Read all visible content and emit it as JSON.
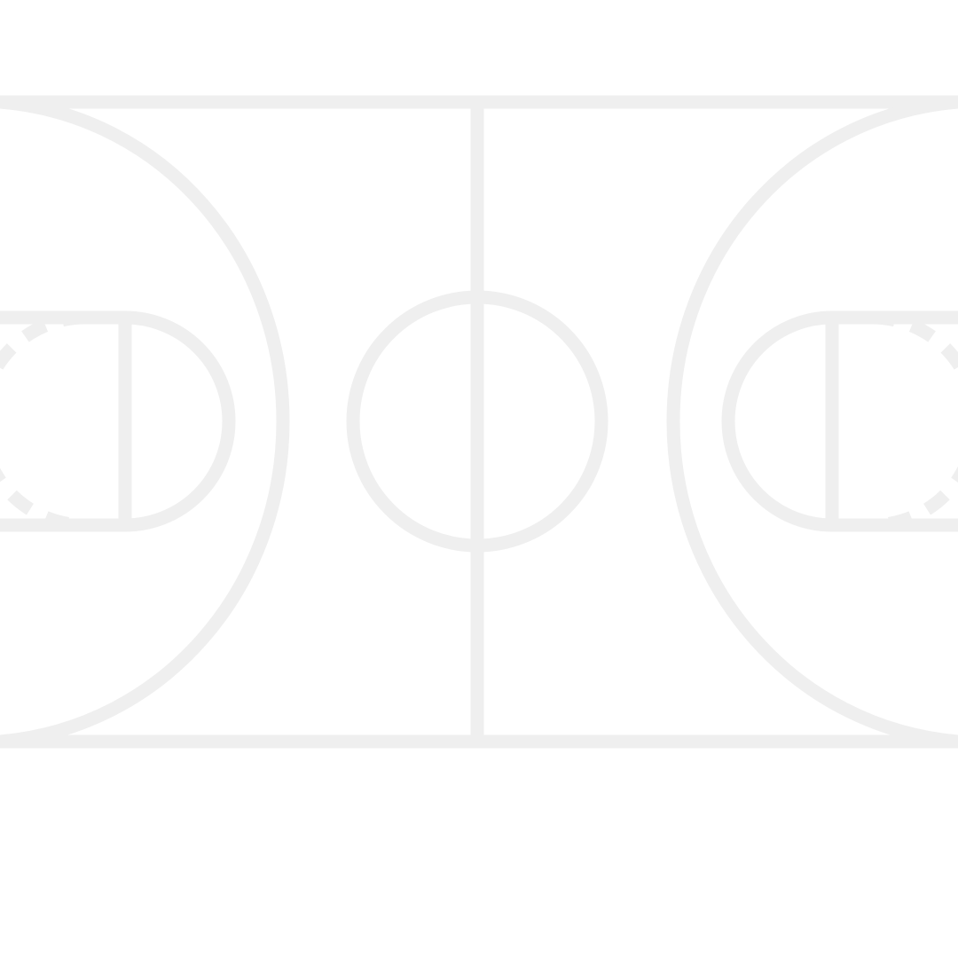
{
  "court": {
    "line_color": "#efefef",
    "background_color": "#ffffff"
  }
}
